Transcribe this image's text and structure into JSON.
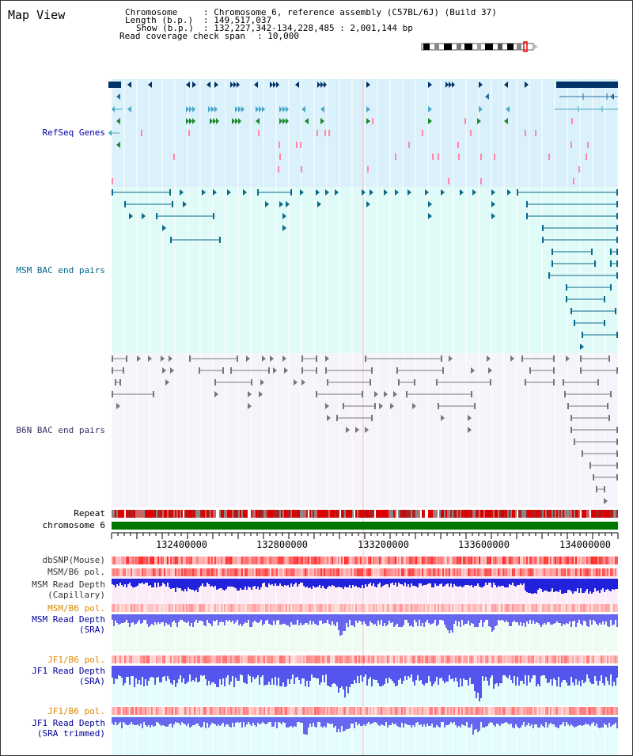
{
  "header": {
    "title": "Map View",
    "chromosome_label": "Chromosome",
    "chromosome_value": "Chromosome 6, reference assembly (C57BL/6J) (Build 37)",
    "length_label": "Length (b.p.)",
    "length_value": "149,517,037",
    "show_label": "Show (b.p.)",
    "show_value": "132,227,342-134,228,485 : 2,001,144 bp",
    "span_label": "Read coverage check span",
    "span_value": "10,000"
  },
  "tracks": {
    "refseq": "RefSeq Genes",
    "msm_bac": "MSM BAC end pairs",
    "b6n_bac": "B6N BAC end pairs",
    "repeat": "Repeat",
    "chromosome": "chromosome 6",
    "dbsnp": "dbSNP(Mouse)",
    "msm_b6_pol_1": "MSM/B6 pol.",
    "msm_depth_cap_1": "MSM Read Depth",
    "msm_depth_cap_2": "(Capillary)",
    "msm_b6_pol_2": "MSM/B6 pol.",
    "msm_depth_sra_1": "MSM Read Depth",
    "msm_depth_sra_2": "(SRA)",
    "jf1_b6_pol_1": "JF1/B6 pol.",
    "jf1_depth_sra_1": "JF1 Read Depth",
    "jf1_depth_sra_2": "(SRA)",
    "jf1_b6_pol_2": "JF1/B6 pol.",
    "jf1_depth_trim_1": "JF1 Read Depth",
    "jf1_depth_trim_2": "(SRA trimmed)"
  },
  "axis": {
    "ticks": [
      "132400000",
      "132800000",
      "133200000",
      "133600000",
      "134000000"
    ]
  },
  "colors": {
    "refseq_bg": "#daf0fa",
    "msm_bg": "#e0faf8",
    "b6n_bg": "#f4f4fa",
    "refseq_text": "#0000aa",
    "msm_text": "#006688",
    "pol_text": "#dd8800",
    "depth_text": "#000099",
    "chrom_bar": "#007700"
  }
}
